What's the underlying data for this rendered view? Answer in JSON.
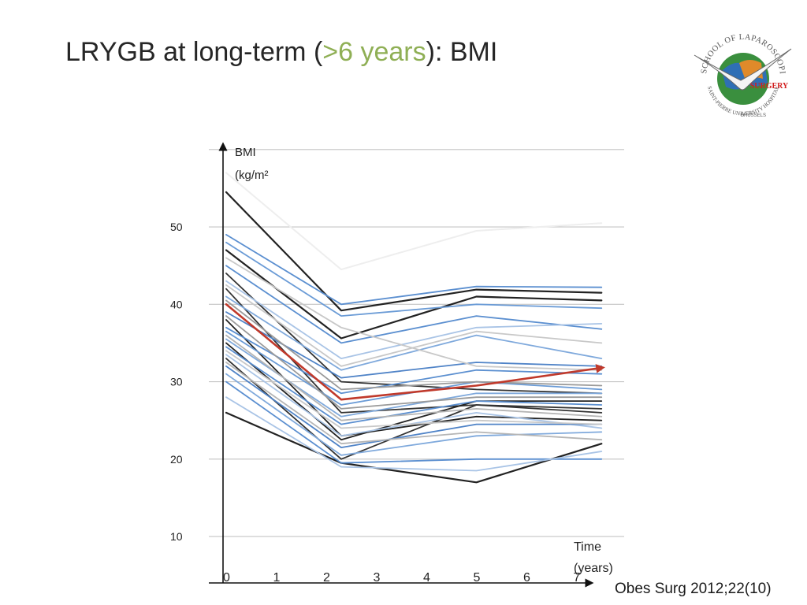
{
  "slide": {
    "title_prefix": "LRYGB at long-term (",
    "title_highlight": ">6 years",
    "title_suffix": "): BMI",
    "citation": "Obes Surg 2012;22(10)",
    "highlight_color": "#8faf55"
  },
  "logo": {
    "icon": "european-school-laparoscopic-surgery-logo",
    "text_top": "EUROPEAN SCHOOL OF LAPAROSCOPIC SURGERY",
    "text_bottom": "SAINT-PIERRE UNIVERSITY HOSPITAL",
    "text_middle": "BRUSSELS",
    "text_brand": "SURGERY"
  },
  "chart_data": {
    "type": "line",
    "ylabel_line1": "BMI",
    "ylabel_line2": "(kg/m²",
    "xlabel_line1": "Time",
    "xlabel_line2": "(years)",
    "x_ticks": [
      "0",
      "1",
      "2",
      "3",
      "4",
      "5",
      "6",
      "7"
    ],
    "y_ticks": [
      10,
      20,
      30,
      40,
      50
    ],
    "xlim": [
      0,
      8
    ],
    "ylim": [
      4,
      61
    ],
    "gridlines": [
      10,
      20,
      30,
      40,
      50,
      60
    ],
    "x_points": [
      0,
      2.3,
      5,
      7.5
    ],
    "mean_color": "#c0392b",
    "series": [
      {
        "values": [
          40,
          27.7,
          29.5,
          31.8
        ],
        "color": "#c0392b",
        "width": 2.6,
        "arrow": true
      },
      {
        "values": [
          54.5,
          39.2,
          41.9,
          41.5
        ],
        "color": "#222222",
        "width": 2.2
      },
      {
        "values": [
          47,
          35.6,
          41,
          40.5
        ],
        "color": "#222222",
        "width": 2.2
      },
      {
        "values": [
          44,
          30,
          29,
          28.5
        ],
        "color": "#333333",
        "width": 1.8
      },
      {
        "values": [
          42,
          26,
          27,
          26.5
        ],
        "color": "#333333",
        "width": 1.8
      },
      {
        "values": [
          38,
          23,
          25.5,
          25
        ],
        "color": "#222222",
        "width": 1.8
      },
      {
        "values": [
          35,
          22.5,
          27.5,
          27.5
        ],
        "color": "#222222",
        "width": 1.8
      },
      {
        "values": [
          33,
          20,
          27,
          26
        ],
        "color": "#333333",
        "width": 1.8
      },
      {
        "values": [
          26,
          19.5,
          17,
          22
        ],
        "color": "#222222",
        "width": 2.2
      },
      {
        "values": [
          57,
          44.5,
          49.5,
          50.5
        ],
        "color": "#eeeeee",
        "width": 2
      },
      {
        "values": [
          49,
          40,
          42.3,
          42.2
        ],
        "color": "#5b8fd0",
        "width": 1.8
      },
      {
        "values": [
          48,
          38.5,
          40,
          39.5
        ],
        "color": "#6a9bd6",
        "width": 1.8
      },
      {
        "values": [
          45,
          35,
          38.5,
          36.8
        ],
        "color": "#5b8fd0",
        "width": 1.8
      },
      {
        "values": [
          43,
          33,
          37,
          37.5
        ],
        "color": "#a9c4e6",
        "width": 1.8
      },
      {
        "values": [
          41,
          31.5,
          36,
          33
        ],
        "color": "#7fa9dc",
        "width": 1.8
      },
      {
        "values": [
          39,
          30.5,
          32.5,
          32
        ],
        "color": "#4f83c7",
        "width": 1.8
      },
      {
        "values": [
          37,
          28.5,
          31.5,
          31
        ],
        "color": "#5b8fd0",
        "width": 1.8
      },
      {
        "values": [
          36.5,
          27,
          30,
          29
        ],
        "color": "#6a9bd6",
        "width": 1.8
      },
      {
        "values": [
          35.5,
          25.5,
          28.5,
          28.5
        ],
        "color": "#7fa9dc",
        "width": 1.8
      },
      {
        "values": [
          34.5,
          24.5,
          27.5,
          27
        ],
        "color": "#5b8fd0",
        "width": 1.8
      },
      {
        "values": [
          33.5,
          23,
          26,
          24
        ],
        "color": "#a9c4e6",
        "width": 1.8
      },
      {
        "values": [
          32,
          21.5,
          24.5,
          24.5
        ],
        "color": "#4f83c7",
        "width": 1.8
      },
      {
        "values": [
          31,
          20.5,
          23,
          23.5
        ],
        "color": "#7fa9dc",
        "width": 1.8
      },
      {
        "values": [
          30,
          19.5,
          20,
          20
        ],
        "color": "#5b8fd0",
        "width": 1.8
      },
      {
        "values": [
          28,
          19,
          18.5,
          21
        ],
        "color": "#a9c4e6",
        "width": 1.8
      },
      {
        "values": [
          46,
          37,
          32,
          31.5
        ],
        "color": "#c8c8c8",
        "width": 1.8
      },
      {
        "values": [
          42.5,
          32,
          36.5,
          35
        ],
        "color": "#c8c8c8",
        "width": 1.8
      },
      {
        "values": [
          40.5,
          29,
          30,
          29.5
        ],
        "color": "#9a9a9a",
        "width": 1.8
      },
      {
        "values": [
          38.5,
          26.5,
          28,
          28
        ],
        "color": "#9a9a9a",
        "width": 1.8
      },
      {
        "values": [
          36,
          25,
          26.5,
          25.5
        ],
        "color": "#b5b5b5",
        "width": 1.8
      },
      {
        "values": [
          34,
          24,
          25,
          24.5
        ],
        "color": "#c8c8c8",
        "width": 1.8
      },
      {
        "values": [
          32.5,
          22,
          23.5,
          22.5
        ],
        "color": "#b5b5b5",
        "width": 1.8
      }
    ]
  }
}
